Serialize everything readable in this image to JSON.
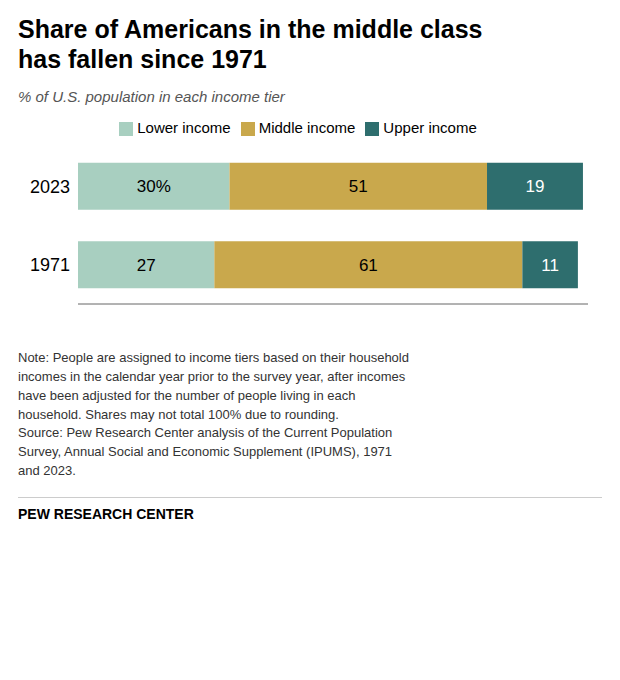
{
  "chart_data": {
    "type": "bar",
    "orientation": "horizontal",
    "stacked": true,
    "title": "Share of Americans in the middle class\nhas fallen since 1971",
    "subtitle": "% of U.S. population in each income tier",
    "categories": [
      "2023",
      "1971"
    ],
    "series": [
      {
        "name": "Lower income",
        "color": "#a8cfc0",
        "values": [
          30,
          27
        ],
        "value_labels": [
          "30%",
          "27"
        ]
      },
      {
        "name": "Middle income",
        "color": "#c9a84c",
        "values": [
          51,
          61
        ],
        "value_labels": [
          "51",
          "61"
        ]
      },
      {
        "name": "Upper income",
        "color": "#2e6e6e",
        "values": [
          19,
          11
        ],
        "value_labels": [
          "19",
          "11"
        ]
      }
    ],
    "xlim": [
      0,
      101
    ],
    "xticks": [],
    "data_labels": true,
    "tick_labels": "y",
    "grid": false,
    "annotations": [
      "Note: People are assigned to income tiers based on their household\nincomes in the calendar year prior to the survey year, after incomes\nhave been adjusted for the number of people living in each\nhousehold. Shares may not total 100% due to rounding.\nSource: Pew Research Center analysis of the Current Population\nSurvey, Annual Social and Economic Supplement (IPUMS), 1971\nand 2023.",
      "PEW RESEARCH CENTER"
    ]
  }
}
